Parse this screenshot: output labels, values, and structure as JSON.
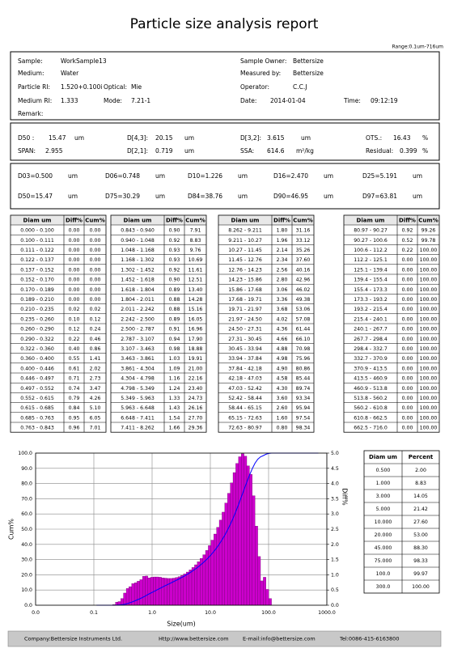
{
  "title": "Particle size analysis report",
  "range": "Range:0.1um-716um",
  "info": [
    [
      "Sample:",
      "WorkSample13"
    ],
    [
      "Sample Owner:",
      "Bettersize"
    ],
    [
      "Medium:",
      "Water"
    ],
    [
      "Measured by:",
      "Bettersize"
    ],
    [
      "Particle RI:",
      "1.520+0.100i"
    ],
    [
      "Optical:",
      "Mie"
    ],
    [
      "Operator:",
      "C.C.J"
    ],
    [
      "Medium RI:",
      "1.333"
    ],
    [
      "Mode:",
      "7.21-1"
    ],
    [
      "Date:",
      "2014-01-04"
    ],
    [
      "Time:",
      "09:12:19"
    ],
    [
      "Remark:"
    ]
  ],
  "stats": [
    [
      "D50 :",
      "15.47",
      "um"
    ],
    [
      "D[4,3]:",
      "20.15",
      "um"
    ],
    [
      "D[3,2]:",
      "3.615",
      "um"
    ],
    [
      "OTS.:",
      "16.43",
      "%"
    ],
    [
      "SPAN:",
      "2.955"
    ],
    [
      "D[2,1]:",
      "0.719",
      "um"
    ],
    [
      "SSA:",
      "614.6",
      "m²/kg"
    ],
    [
      "Residual:",
      "0.399",
      "%"
    ]
  ],
  "percentiles": [
    [
      "D03=0.500",
      "um"
    ],
    [
      "D06=0.748",
      "um"
    ],
    [
      "D10=1.226",
      "um"
    ],
    [
      "D16=2.470",
      "um"
    ],
    [
      "D25=5.191",
      "um"
    ],
    [
      "D50=15.47",
      "um"
    ],
    [
      "D75=30.29",
      "um"
    ],
    [
      "D84=38.76",
      "um"
    ],
    [
      "D90=46.95",
      "um"
    ],
    [
      "D97=63.81",
      "um"
    ]
  ],
  "table": {
    "columns": [
      "Diam um",
      "Diff%",
      "Cum%"
    ],
    "groups": [
      [
        [
          "0.000 - 0.100",
          "0.00",
          "0.00"
        ],
        [
          "0.100 - 0.111",
          "0.00",
          "0.00"
        ],
        [
          "0.111 - 0.122",
          "0.00",
          "0.00"
        ],
        [
          "0.122 - 0.137",
          "0.00",
          "0.00"
        ],
        [
          "0.137 - 0.152",
          "0.00",
          "0.00"
        ],
        [
          "0.152 - 0.170",
          "0.00",
          "0.00"
        ],
        [
          "0.170 - 0.189",
          "0.00",
          "0.00"
        ],
        [
          "0.189 - 0.210",
          "0.00",
          "0.00"
        ],
        [
          "0.210 - 0.235",
          "0.02",
          "0.02"
        ],
        [
          "0.235 - 0.260",
          "0.10",
          "0.12"
        ],
        [
          "0.260 - 0.290",
          "0.12",
          "0.24"
        ],
        [
          "0.290 - 0.322",
          "0.22",
          "0.46"
        ],
        [
          "0.322 - 0.360",
          "0.40",
          "0.86"
        ],
        [
          "0.360 - 0.400",
          "0.55",
          "1.41"
        ],
        [
          "0.400 - 0.446",
          "0.61",
          "2.02"
        ],
        [
          "0.446 - 0.497",
          "0.71",
          "2.73"
        ],
        [
          "0.497 - 0.552",
          "0.74",
          "3.47"
        ],
        [
          "0.552 - 0.615",
          "0.79",
          "4.26"
        ],
        [
          "0.615 - 0.685",
          "0.84",
          "5.10"
        ],
        [
          "0.685 - 0.763",
          "0.95",
          "6.05"
        ],
        [
          "0.763 - 0.843",
          "0.96",
          "7.01"
        ]
      ],
      [
        [
          "0.843 - 0.940",
          "0.90",
          "7.91"
        ],
        [
          "0.940 - 1.048",
          "0.92",
          "8.83"
        ],
        [
          "1.048 - 1.168",
          "0.93",
          "9.76"
        ],
        [
          "1.168 - 1.302",
          "0.93",
          "10.69"
        ],
        [
          "1.302 - 1.452",
          "0.92",
          "11.61"
        ],
        [
          "1.452 - 1.618",
          "0.90",
          "12.51"
        ],
        [
          "1.618 - 1.804",
          "0.89",
          "13.40"
        ],
        [
          "1.804 - 2.011",
          "0.88",
          "14.28"
        ],
        [
          "2.011 - 2.242",
          "0.88",
          "15.16"
        ],
        [
          "2.242 - 2.500",
          "0.89",
          "16.05"
        ],
        [
          "2.500 - 2.787",
          "0.91",
          "16.96"
        ],
        [
          "2.787 - 3.107",
          "0.94",
          "17.90"
        ],
        [
          "3.107 - 3.463",
          "0.98",
          "18.88"
        ],
        [
          "3.463 - 3.861",
          "1.03",
          "19.91"
        ],
        [
          "3.861 - 4.304",
          "1.09",
          "21.00"
        ],
        [
          "4.304 - 4.798",
          "1.16",
          "22.16"
        ],
        [
          "4.798 - 5.349",
          "1.24",
          "23.40"
        ],
        [
          "5.349 - 5.963",
          "1.33",
          "24.73"
        ],
        [
          "5.963 - 6.648",
          "1.43",
          "26.16"
        ],
        [
          "6.648 - 7.411",
          "1.54",
          "27.70"
        ],
        [
          "7.411 - 8.262",
          "1.66",
          "29.36"
        ]
      ],
      [
        [
          "8.262 - 9.211",
          "1.80",
          "31.16"
        ],
        [
          "9.211 - 10.27",
          "1.96",
          "33.12"
        ],
        [
          "10.27 - 11.45",
          "2.14",
          "35.26"
        ],
        [
          "11.45 - 12.76",
          "2.34",
          "37.60"
        ],
        [
          "12.76 - 14.23",
          "2.56",
          "40.16"
        ],
        [
          "14.23 - 15.86",
          "2.80",
          "42.96"
        ],
        [
          "15.86 - 17.68",
          "3.06",
          "46.02"
        ],
        [
          "17.68 - 19.71",
          "3.36",
          "49.38"
        ],
        [
          "19.71 - 21.97",
          "3.68",
          "53.06"
        ],
        [
          "21.97 - 24.50",
          "4.02",
          "57.08"
        ],
        [
          "24.50 - 27.31",
          "4.36",
          "61.44"
        ],
        [
          "27.31 - 30.45",
          "4.66",
          "66.10"
        ],
        [
          "30.45 - 33.94",
          "4.88",
          "70.98"
        ],
        [
          "33.94 - 37.84",
          "4.98",
          "75.96"
        ],
        [
          "37.84 - 42.18",
          "4.90",
          "80.86"
        ],
        [
          "42.18 - 47.03",
          "4.58",
          "85.44"
        ],
        [
          "47.03 - 52.42",
          "4.30",
          "89.74"
        ],
        [
          "52.42 - 58.44",
          "3.60",
          "93.34"
        ],
        [
          "58.44 - 65.15",
          "2.60",
          "95.94"
        ],
        [
          "65.15 - 72.63",
          "1.60",
          "97.54"
        ],
        [
          "72.63 - 80.97",
          "0.80",
          "98.34"
        ]
      ],
      [
        [
          "80.97 - 90.27",
          "0.92",
          "99.26"
        ],
        [
          "90.27 - 100.6",
          "0.52",
          "99.78"
        ],
        [
          "100.6 - 112.2",
          "0.22",
          "100.00"
        ],
        [
          "112.2 - 125.1",
          "0.00",
          "100.00"
        ],
        [
          "125.1 - 139.4",
          "0.00",
          "100.00"
        ],
        [
          "139.4 - 155.4",
          "0.00",
          "100.00"
        ],
        [
          "155.4 - 173.3",
          "0.00",
          "100.00"
        ],
        [
          "173.3 - 193.2",
          "0.00",
          "100.00"
        ],
        [
          "193.2 - 215.4",
          "0.00",
          "100.00"
        ],
        [
          "215.4 - 240.1",
          "0.00",
          "100.00"
        ],
        [
          "240.1 - 267.7",
          "0.00",
          "100.00"
        ],
        [
          "267.7 - 298.4",
          "0.00",
          "100.00"
        ],
        [
          "298.4 - 332.7",
          "0.00",
          "100.00"
        ],
        [
          "332.7 - 370.9",
          "0.00",
          "100.00"
        ],
        [
          "370.9 - 413.5",
          "0.00",
          "100.00"
        ],
        [
          "413.5 - 460.9",
          "0.00",
          "100.00"
        ],
        [
          "460.9 - 513.8",
          "0.00",
          "100.00"
        ],
        [
          "513.8 - 560.2",
          "0.00",
          "100.00"
        ],
        [
          "560.2 - 610.8",
          "0.00",
          "100.00"
        ],
        [
          "610.8 - 662.5",
          "0.00",
          "100.00"
        ],
        [
          "662.5 - 716.0",
          "0.00",
          "100.00"
        ]
      ]
    ]
  },
  "right_table": {
    "columns": [
      "Diam um",
      "Percent"
    ],
    "rows": [
      [
        "0.500",
        "2.00"
      ],
      [
        "1.000",
        "8.83"
      ],
      [
        "3.000",
        "14.05"
      ],
      [
        "5.000",
        "21.42"
      ],
      [
        "10.000",
        "27.60"
      ],
      [
        "20.000",
        "53.00"
      ],
      [
        "45.000",
        "88.30"
      ],
      [
        "75.000",
        "98.33"
      ],
      [
        "100.0",
        "99.97"
      ],
      [
        "300.0",
        "100.00"
      ]
    ]
  },
  "chart_data": {
    "type": "histogram",
    "xlabel": "Size(um)",
    "ylabel": "Cum%",
    "y2label": "Diff%",
    "log_x": true,
    "grid": true,
    "xlim": [
      0.01,
      1000
    ],
    "xticks": [
      {
        "value": 0.01,
        "label": "0.0"
      },
      0.1,
      {
        "value": 1,
        "label": "1.0"
      },
      {
        "value": 10,
        "label": "10.0"
      },
      {
        "value": 100,
        "label": "100.0"
      },
      {
        "value": 1000,
        "label": "1000.0"
      }
    ],
    "ylim": [
      0,
      100
    ],
    "yticks": [
      {
        "value": 0,
        "label": "0.0"
      },
      {
        "value": 10,
        "label": "10.0"
      },
      {
        "value": 20,
        "label": "20.0"
      },
      {
        "value": 30,
        "label": "30.0"
      },
      {
        "value": 40,
        "label": "40.0"
      },
      {
        "value": 50,
        "label": "50.0"
      },
      {
        "value": 60,
        "label": "60.0"
      },
      {
        "value": 70,
        "label": "70.0"
      },
      {
        "value": 80,
        "label": "80.0"
      },
      {
        "value": 90,
        "label": "90.0"
      },
      {
        "value": 100,
        "label": "100.0"
      }
    ],
    "y2lim": [
      0,
      5
    ],
    "y2ticks": [
      {
        "value": 0,
        "label": "0.0"
      },
      0.5,
      {
        "value": 1,
        "label": "1.0"
      },
      1.5,
      {
        "value": 2,
        "label": "2.0"
      },
      2.5,
      {
        "value": 3,
        "label": "3.0"
      },
      3.5,
      {
        "value": 4,
        "label": "4.0"
      },
      4.5,
      {
        "value": 5,
        "label": "5.0"
      }
    ],
    "bins": [
      0.1,
      0.111,
      0.122,
      0.137,
      0.152,
      0.17,
      0.189,
      0.21,
      0.235,
      0.26,
      0.29,
      0.322,
      0.36,
      0.4,
      0.446,
      0.497,
      0.552,
      0.615,
      0.685,
      0.763,
      0.843,
      0.94,
      1.048,
      1.168,
      1.302,
      1.452,
      1.618,
      1.804,
      2.011,
      2.242,
      2.5,
      2.787,
      3.107,
      3.463,
      3.861,
      4.304,
      4.798,
      5.349,
      5.963,
      6.648,
      7.411,
      8.262,
      9.211,
      10.27,
      11.45,
      12.76,
      14.23,
      15.86,
      17.68,
      19.71,
      21.97,
      24.5,
      27.31,
      30.45,
      33.94,
      37.84,
      42.18,
      47.03,
      52.42,
      58.44,
      65.15,
      72.63,
      80.97,
      90.27,
      100.6,
      112.2,
      125.1,
      139.4,
      155.4,
      173.3,
      193.2,
      215.4,
      240.1,
      267.7,
      298.4,
      332.7,
      370.9,
      413.5,
      460.9,
      513.8,
      560.2,
      610.8,
      662.5,
      716
    ],
    "values": [
      0,
      0,
      0,
      0,
      0,
      0,
      0,
      0.02,
      0.1,
      0.12,
      0.22,
      0.4,
      0.55,
      0.61,
      0.71,
      0.74,
      0.79,
      0.84,
      0.95,
      0.96,
      0.9,
      0.92,
      0.93,
      0.93,
      0.92,
      0.9,
      0.89,
      0.88,
      0.88,
      0.89,
      0.91,
      0.94,
      0.98,
      1.03,
      1.09,
      1.16,
      1.24,
      1.33,
      1.43,
      1.54,
      1.66,
      1.8,
      1.96,
      2.14,
      2.34,
      2.56,
      2.8,
      3.06,
      3.36,
      3.68,
      4.02,
      4.36,
      4.66,
      4.88,
      4.98,
      4.9,
      4.58,
      4.3,
      3.6,
      2.6,
      1.6,
      0.8,
      0.92,
      0.52,
      0.22,
      0,
      0,
      0,
      0,
      0,
      0,
      0,
      0,
      0,
      0,
      0,
      0,
      0,
      0,
      0,
      0,
      0,
      0
    ],
    "color": "#cc00cc",
    "axis": "y2",
    "cumulative": {
      "color": "#0000ff",
      "x": [
        0.111,
        0.122,
        0.137,
        0.152,
        0.17,
        0.189,
        0.21,
        0.235,
        0.26,
        0.29,
        0.322,
        0.36,
        0.4,
        0.446,
        0.497,
        0.552,
        0.615,
        0.685,
        0.763,
        0.843,
        0.94,
        1.048,
        1.168,
        1.302,
        1.452,
        1.618,
        1.804,
        2.011,
        2.242,
        2.5,
        2.787,
        3.107,
        3.463,
        3.861,
        4.304,
        4.798,
        5.349,
        5.963,
        6.648,
        7.411,
        8.262,
        9.211,
        10.27,
        11.45,
        12.76,
        14.23,
        15.86,
        17.68,
        19.71,
        21.97,
        24.5,
        27.31,
        30.45,
        33.94,
        37.84,
        42.18,
        47.03,
        52.42,
        58.44,
        65.15,
        72.63,
        80.97,
        90.27,
        100.6,
        112.2,
        125.1,
        139.4,
        155.4,
        173.3,
        193.2,
        215.4,
        240.1,
        267.7,
        298.4,
        332.7,
        370.9,
        413.5,
        460.9,
        513.8,
        560.2,
        610.8,
        662.5,
        716
      ],
      "values": [
        0,
        0,
        0,
        0,
        0,
        0,
        0,
        0.02,
        0.12,
        0.24,
        0.46,
        0.86,
        1.41,
        2.02,
        2.73,
        3.47,
        4.26,
        5.1,
        6.05,
        7.01,
        7.91,
        8.83,
        9.76,
        10.69,
        11.61,
        12.51,
        13.4,
        14.28,
        15.16,
        16.05,
        16.96,
        17.9,
        18.88,
        19.91,
        21,
        22.16,
        23.4,
        24.73,
        26.16,
        27.7,
        29.36,
        31.16,
        33.12,
        35.26,
        37.6,
        40.16,
        42.96,
        46.02,
        49.38,
        53.06,
        57.08,
        61.44,
        66.1,
        70.98,
        75.96,
        80.86,
        85.44,
        89.74,
        93.34,
        95.94,
        97.54,
        98.34,
        99.26,
        99.78,
        100,
        100,
        100,
        100,
        100,
        100,
        100,
        100,
        100,
        100,
        100,
        100,
        100,
        100,
        100,
        100,
        100,
        100,
        100
      ]
    }
  },
  "footer": [
    "Company:Bettersize Instruments Ltd.",
    "Http://www.bettersize.com",
    "E-mail:info@bettersize.com",
    "Tel:0086-415-6163800"
  ]
}
